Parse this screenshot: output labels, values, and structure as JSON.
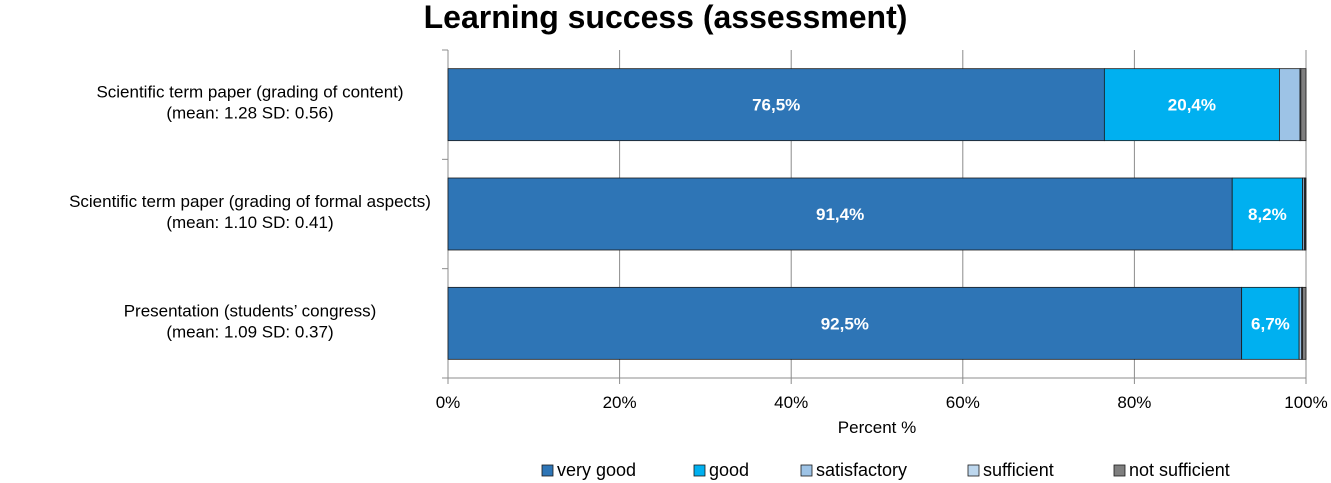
{
  "chart_data": {
    "type": "bar",
    "orientation": "horizontal",
    "stacked": "percent",
    "title": "Learning success (assessment)",
    "xlabel": "Percent %",
    "ylabel": "",
    "xlim": [
      0,
      100
    ],
    "x_ticks": [
      "0%",
      "20%",
      "40%",
      "60%",
      "80%",
      "100%"
    ],
    "grid": true,
    "legend_position": "bottom",
    "categories": [
      [
        "Scientific term paper (grading of content)",
        "(mean: 1.28 SD: 0.56)"
      ],
      [
        "Scientific term paper (grading of formal aspects)",
        "(mean: 1.10 SD: 0.41)"
      ],
      [
        "Presentation (students’ congress)",
        "(mean: 1.09 SD: 0.37)"
      ]
    ],
    "series": [
      {
        "name": "very good",
        "color": "#2E75B6",
        "values": [
          76.5,
          91.4,
          92.5
        ],
        "labels": [
          "76,5%",
          "91,4%",
          "92,5%"
        ]
      },
      {
        "name": "good",
        "color": "#00B0F0",
        "values": [
          20.4,
          8.2,
          6.7
        ],
        "labels": [
          "20,4%",
          "8,2%",
          "6,7%"
        ]
      },
      {
        "name": "satisfactory",
        "color": "#9DC3E6",
        "values": [
          2.4,
          0.2,
          0.3
        ],
        "labels": [
          "",
          "",
          ""
        ]
      },
      {
        "name": "sufficient",
        "color": "#BDD7EE",
        "values": [
          0.1,
          0.1,
          0.1
        ],
        "labels": [
          "",
          "",
          ""
        ]
      },
      {
        "name": "not sufficient",
        "color": "#7F7F7F",
        "values": [
          0.6,
          0.1,
          0.4
        ],
        "labels": [
          "",
          "",
          ""
        ]
      }
    ]
  }
}
